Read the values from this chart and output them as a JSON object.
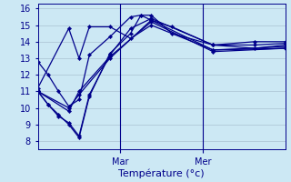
{
  "xlabel": "Température (°c)",
  "bg_color": "#cce8f4",
  "line_color": "#00008b",
  "grid_color": "#b0c8d8",
  "yticks": [
    8,
    9,
    10,
    11,
    12,
    13,
    14,
    15,
    16
  ],
  "xtick_positions": [
    8,
    16
  ],
  "xtick_labels": [
    "Mar",
    "Mer"
  ],
  "xlim": [
    0,
    24
  ],
  "ylim": [
    7.5,
    16.3
  ],
  "lines": [
    [
      0,
      12.8,
      1,
      12.0,
      2,
      11.0,
      3,
      10.1,
      4,
      10.5,
      5,
      13.2,
      7,
      14.3,
      9,
      15.5,
      10,
      15.6,
      11,
      15.3,
      13,
      14.9,
      17,
      13.8,
      21,
      14.0,
      24,
      14.0
    ],
    [
      0,
      11.0,
      1,
      10.2,
      2,
      9.6,
      3,
      9.0,
      4,
      8.2,
      5,
      10.7,
      7,
      13.3,
      9,
      14.5,
      10,
      15.6,
      11,
      15.6,
      13,
      14.5,
      17,
      13.8,
      21,
      13.8,
      24,
      13.9
    ],
    [
      0,
      11.0,
      1,
      10.2,
      2,
      9.5,
      3,
      9.1,
      4,
      8.3,
      5,
      10.8,
      7,
      13.2,
      9,
      14.8,
      11,
      15.4,
      17,
      13.8,
      21,
      13.6,
      24,
      13.8
    ],
    [
      0,
      11.0,
      3,
      10.0,
      4,
      10.8,
      7,
      13.0,
      11,
      15.3,
      17,
      13.5,
      24,
      13.7
    ],
    [
      0,
      11.0,
      3,
      9.8,
      4,
      11.0,
      7,
      13.1,
      11,
      15.2,
      17,
      13.4,
      24,
      13.6
    ],
    [
      0,
      11.2,
      3,
      14.8,
      4,
      13.0,
      5,
      14.9,
      7,
      14.9,
      9,
      14.2,
      11,
      15.0,
      17,
      13.5,
      24,
      13.6
    ]
  ]
}
